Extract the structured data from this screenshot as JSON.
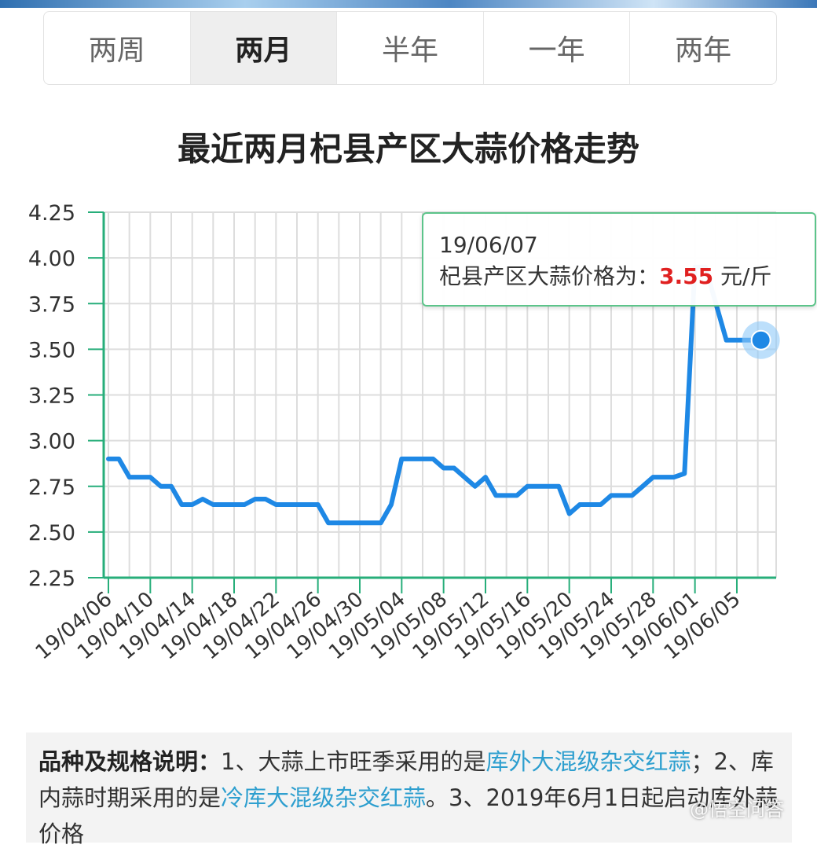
{
  "tabs": [
    {
      "label": "两周",
      "active": false
    },
    {
      "label": "两月",
      "active": true
    },
    {
      "label": "半年",
      "active": false
    },
    {
      "label": "一年",
      "active": false
    },
    {
      "label": "两年",
      "active": false
    }
  ],
  "tooltip": {
    "date": "19/06/07",
    "label": "杞县产区大蒜价格为：",
    "price": "3.55",
    "unit": "元/斤"
  },
  "spec": {
    "heading": "品种及规格说明：",
    "part1": "1、大蒜上市旺季采用的是",
    "link1": "库外大混级杂交红蒜",
    "part2": "；2、库内蒜时期采用的是",
    "link2": "冷库大混级杂交红蒜",
    "part3": "。3、2019年6月1日起启动库外蒜价格"
  },
  "watermark": "@悟空问答",
  "colors": {
    "line": "#1e88e5",
    "axis": "#27ae7a",
    "grid": "#dddddd",
    "tooltip_border": "#5cc48a",
    "price": "#e02020",
    "link": "#2e9fcf"
  },
  "chart_data": {
    "type": "line",
    "title": "最近两月杞县产区大蒜价格走势",
    "xlabel": "",
    "ylabel": "",
    "ylim": [
      2.25,
      4.25
    ],
    "yticks": [
      "4.25",
      "4.00",
      "3.75",
      "3.50",
      "3.25",
      "3.00",
      "2.75",
      "2.50",
      "2.25"
    ],
    "xticks": [
      "19/04/06",
      "19/04/10",
      "19/04/14",
      "19/04/18",
      "19/04/22",
      "19/04/26",
      "19/04/30",
      "19/05/04",
      "19/05/08",
      "19/05/12",
      "19/05/16",
      "19/05/20",
      "19/05/24",
      "19/05/28",
      "19/06/01",
      "19/06/05"
    ],
    "grid": true,
    "series": [
      {
        "x": [
          "19/04/06",
          "19/04/07",
          "19/04/08",
          "19/04/09",
          "19/04/10",
          "19/04/11",
          "19/04/12",
          "19/04/13",
          "19/04/14",
          "19/04/15",
          "19/04/16",
          "19/04/17",
          "19/04/18",
          "19/04/19",
          "19/04/20",
          "19/04/21",
          "19/04/22",
          "19/04/23",
          "19/04/24",
          "19/04/25",
          "19/04/26",
          "19/04/27",
          "19/04/28",
          "19/04/29",
          "19/04/30",
          "19/05/01",
          "19/05/02",
          "19/05/03",
          "19/05/04",
          "19/05/05",
          "19/05/06",
          "19/05/07",
          "19/05/08",
          "19/05/09",
          "19/05/10",
          "19/05/11",
          "19/05/12",
          "19/05/13",
          "19/05/14",
          "19/05/15",
          "19/05/16",
          "19/05/17",
          "19/05/18",
          "19/05/19",
          "19/05/20",
          "19/05/21",
          "19/05/22",
          "19/05/23",
          "19/05/24",
          "19/05/25",
          "19/05/26",
          "19/05/27",
          "19/05/28",
          "19/05/29",
          "19/05/30",
          "19/05/31",
          "19/06/01",
          "19/06/02",
          "19/06/03",
          "19/06/04",
          "19/06/05",
          "19/06/06",
          "19/06/07"
        ],
        "values": [
          2.9,
          2.9,
          2.8,
          2.8,
          2.8,
          2.75,
          2.75,
          2.65,
          2.65,
          2.68,
          2.65,
          2.65,
          2.65,
          2.65,
          2.68,
          2.68,
          2.65,
          2.65,
          2.65,
          2.65,
          2.65,
          2.55,
          2.55,
          2.55,
          2.55,
          2.55,
          2.55,
          2.65,
          2.9,
          2.9,
          2.9,
          2.9,
          2.85,
          2.85,
          2.8,
          2.75,
          2.8,
          2.7,
          2.7,
          2.7,
          2.75,
          2.75,
          2.75,
          2.75,
          2.6,
          2.65,
          2.65,
          2.65,
          2.7,
          2.7,
          2.7,
          2.75,
          2.8,
          2.8,
          2.8,
          2.82,
          3.95,
          3.95,
          3.75,
          3.55,
          3.55,
          3.55,
          3.55
        ]
      }
    ]
  }
}
